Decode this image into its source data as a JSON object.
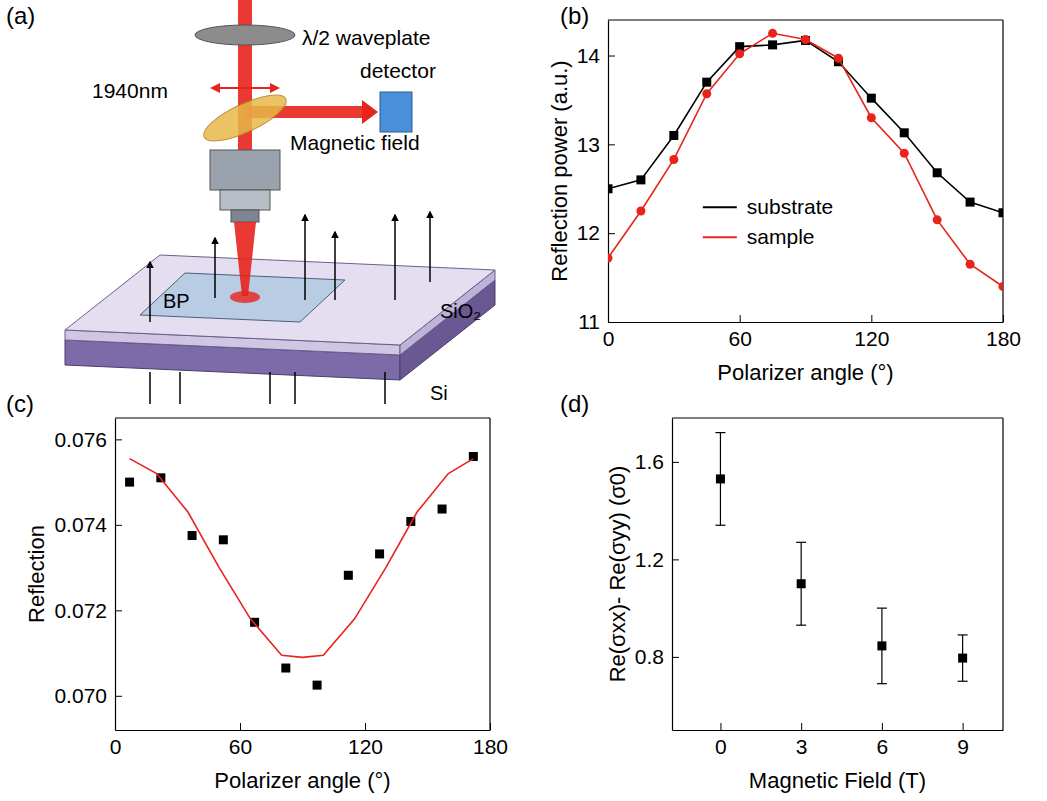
{
  "diagram": {
    "panel": "(a)",
    "labels": {
      "waveplate": "λ/2 waveplate",
      "wavelength": "1940nm",
      "detector": "detector",
      "field": "Magnetic field",
      "sample": "BP",
      "oxide": "SiO₂",
      "substrate": "Si"
    }
  },
  "chart_data": [
    {
      "panel": "(b)",
      "type": "line",
      "x_label": "Polarizer angle (°)",
      "y_label": "Reflection power (a.u.)",
      "x": [
        0,
        15,
        30,
        45,
        60,
        75,
        90,
        105,
        120,
        135,
        150,
        165,
        180
      ],
      "series": [
        {
          "name": "substrate",
          "color": "#000000",
          "marker": "square",
          "values": [
            12.5,
            12.6,
            13.1,
            13.7,
            14.1,
            14.12,
            14.17,
            13.93,
            13.52,
            13.13,
            12.68,
            12.35,
            12.23
          ]
        },
        {
          "name": "sample",
          "color": "#e8231c",
          "marker": "circle",
          "values": [
            11.72,
            12.25,
            12.83,
            13.57,
            14.02,
            14.25,
            14.18,
            13.97,
            13.3,
            12.9,
            12.15,
            11.65,
            11.4
          ]
        }
      ],
      "xlim": [
        0,
        180
      ],
      "xticks": [
        0,
        60,
        120,
        180
      ],
      "ylim": [
        11,
        14.4
      ],
      "yticks": [
        11,
        12,
        13,
        14
      ],
      "legend": "center"
    },
    {
      "panel": "(c)",
      "type": "scatter",
      "x_label": "Polarizer angle (°)",
      "y_label": "Reflection",
      "x": [
        7,
        22,
        37,
        52,
        67,
        82,
        97,
        112,
        127,
        142,
        157,
        172
      ],
      "series": [
        {
          "type": "scatter",
          "color": "#000000",
          "marker": "square",
          "values": [
            0.075,
            0.0751,
            0.07375,
            0.07365,
            0.07172,
            0.07065,
            0.07025,
            0.07282,
            0.07332,
            0.07408,
            0.07437,
            0.0756
          ]
        },
        {
          "type": "line",
          "color": "#e8231c",
          "x": [
            7,
            20,
            35,
            50,
            65,
            80,
            90,
            100,
            115,
            130,
            145,
            160,
            172
          ],
          "values": [
            0.07555,
            0.0752,
            0.0743,
            0.073,
            0.0718,
            0.07095,
            0.0709,
            0.07095,
            0.0718,
            0.073,
            0.0743,
            0.0752,
            0.07555
          ]
        }
      ],
      "xlim": [
        0,
        180
      ],
      "xticks": [
        0,
        60,
        120,
        180
      ],
      "ylim": [
        0.0692,
        0.0765
      ],
      "yticks": [
        {
          "value": 0.07,
          "label": "0.070"
        },
        {
          "value": 0.072,
          "label": "0.072"
        },
        {
          "value": 0.074,
          "label": "0.074"
        },
        {
          "value": 0.076,
          "label": "0.076"
        }
      ]
    },
    {
      "panel": "(d)",
      "type": "scatter",
      "x_label": "Magnetic Field (T)",
      "y_label": "Re(σxx)- Re(σyy) (σ0)",
      "x": [
        0,
        3,
        6,
        9
      ],
      "series": [
        {
          "color": "#000000",
          "marker": "square",
          "values": [
            1.53,
            1.1,
            0.845,
            0.795
          ],
          "errors": [
            0.19,
            0.17,
            0.155,
            0.095
          ]
        }
      ],
      "xlim": [
        -1.8,
        10.5
      ],
      "xticks": [
        0,
        3,
        6,
        9
      ],
      "ylim": [
        0.5,
        1.78
      ],
      "yticks": [
        0.8,
        1.2,
        1.6
      ]
    }
  ]
}
